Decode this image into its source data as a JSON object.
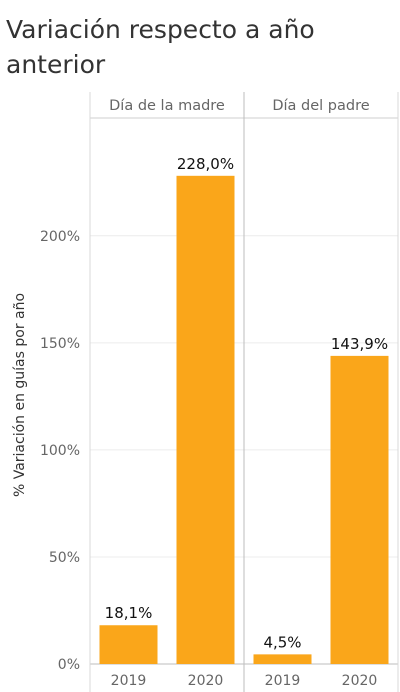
{
  "chart_data": {
    "type": "bar",
    "title": "Variación respecto a año anterior",
    "ylabel": "% Variación en guías por año",
    "ylim": [
      0,
      255
    ],
    "yticks": [
      {
        "value": 0,
        "label": "0%"
      },
      {
        "value": 50,
        "label": "50%"
      },
      {
        "value": 100,
        "label": "100%"
      },
      {
        "value": 150,
        "label": "150%"
      },
      {
        "value": 200,
        "label": "200%"
      }
    ],
    "grid": true,
    "bar_color": "#FAA61A",
    "panels": [
      {
        "name": "Día de la madre",
        "categories": [
          "2019",
          "2020"
        ],
        "values": [
          18.1,
          228.0
        ],
        "labels": [
          "18,1%",
          "228,0%"
        ]
      },
      {
        "name": "Día del padre",
        "categories": [
          "2019",
          "2020"
        ],
        "values": [
          4.5,
          143.9
        ],
        "labels": [
          "4,5%",
          "143,9%"
        ]
      }
    ]
  }
}
